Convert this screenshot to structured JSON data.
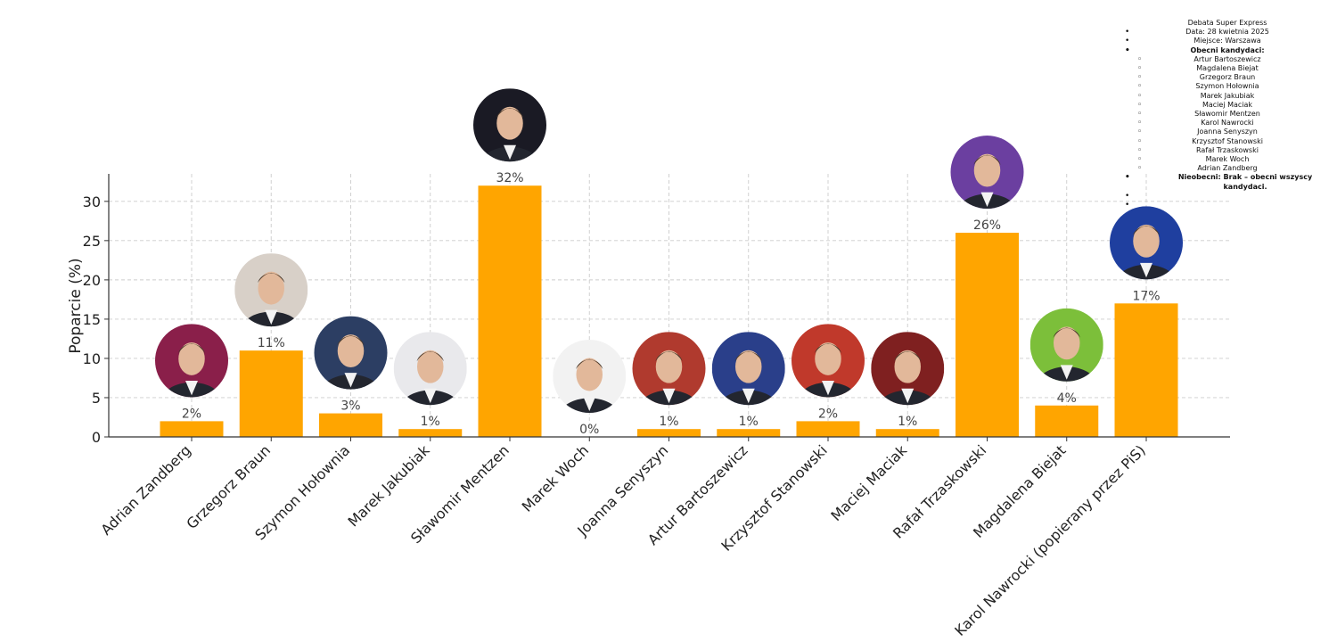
{
  "chart_data": {
    "type": "bar",
    "categories": [
      "Adrian Zandberg",
      "Grzegorz Braun",
      "Szymon Hołownia",
      "Marek Jakubiak",
      "Sławomir Mentzen",
      "Marek Woch",
      "Joanna Senyszyn",
      "Artur Bartoszewicz",
      "Krzysztof Stanowski",
      "Maciej Maciak",
      "Rafał Trzaskowski",
      "Magdalena Biejat",
      "Karol Nawrocki (popierany przez PiS)"
    ],
    "values": [
      2,
      11,
      3,
      1,
      32,
      0,
      1,
      1,
      2,
      1,
      26,
      4,
      17
    ],
    "value_labels": [
      "2%",
      "11%",
      "3%",
      "1%",
      "32%",
      "0%",
      "1%",
      "1%",
      "2%",
      "1%",
      "26%",
      "4%",
      "17%"
    ],
    "ylabel": "Poparcie (%)",
    "xlabel": "",
    "title": "",
    "ylim": [
      0,
      33.5
    ],
    "yticks": [
      0,
      5,
      10,
      15,
      20,
      25,
      30
    ],
    "grid": true,
    "bar_color": "#FFA500",
    "photo_colors": [
      "#8a1f4a",
      "#d8d0c8",
      "#2c3e63",
      "#e9e9ec",
      "#1a1a24",
      "#f2f2f2",
      "#b03a2e",
      "#2a3f8a",
      "#c0392b",
      "#7f2020",
      "#6b3fa0",
      "#7cbf3a",
      "#1f3f9f"
    ]
  },
  "info": {
    "title": "Debata Super Express",
    "date": "Data: 28 kwietnia 2025",
    "place": "Miejsce: Warszawa",
    "present_heading": "Obecni kandydaci:",
    "present": [
      "Artur Bartoszewicz",
      "Magdalena Biejat",
      "Grzegorz Braun",
      "Szymon Hołownia",
      "Marek Jakubiak",
      "Maciej Maciak",
      "Sławomir Mentzen",
      "Karol Nawrocki",
      "Joanna Senyszyn",
      "Krzysztof Stanowski",
      "Rafał Trzaskowski",
      "Marek Woch",
      "Adrian Zandberg"
    ],
    "absent": "Nieobecni: Brak – obecni wszyscy kandydaci."
  }
}
